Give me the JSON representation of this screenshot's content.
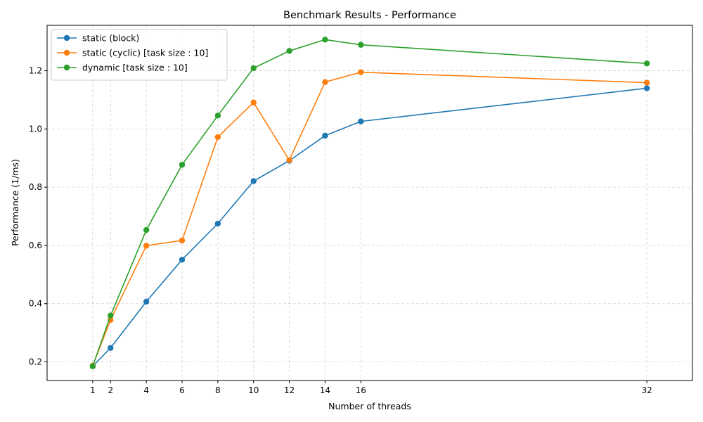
{
  "chart_data": {
    "type": "line",
    "title": "Benchmark Results - Performance",
    "xlabel": "Number of threads",
    "ylabel": "Performance (1/ms)",
    "x": [
      1,
      2,
      4,
      6,
      8,
      10,
      12,
      14,
      16,
      32
    ],
    "x_ticks": [
      1,
      2,
      4,
      6,
      8,
      10,
      12,
      14,
      16,
      32
    ],
    "y_ticks": [
      0.2,
      0.4,
      0.6,
      0.8,
      1.0,
      1.2
    ],
    "xlim": [
      -1.55,
      34.55
    ],
    "ylim": [
      0.136,
      1.356
    ],
    "grid": true,
    "legend_position": "top-left",
    "series": [
      {
        "name": "static (block)",
        "color": "#1f77b4",
        "values": [
          0.185,
          0.248,
          0.407,
          0.551,
          0.675,
          0.821,
          0.891,
          0.977,
          1.026,
          1.14
        ]
      },
      {
        "name": "static (cyclic) [task size : 10]",
        "color": "#ff7f0e",
        "values": [
          0.187,
          0.344,
          0.599,
          0.617,
          0.972,
          1.091,
          0.893,
          1.161,
          1.195,
          1.159
        ]
      },
      {
        "name": "dynamic [task size : 10]",
        "color": "#2ca02c",
        "values": [
          0.185,
          0.359,
          0.653,
          0.877,
          1.046,
          1.209,
          1.268,
          1.307,
          1.289,
          1.225
        ]
      }
    ]
  }
}
